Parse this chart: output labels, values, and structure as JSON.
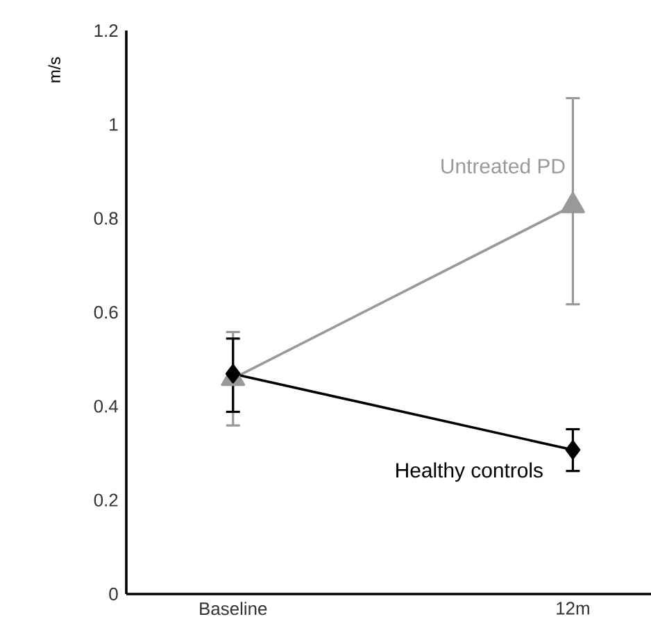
{
  "chart_data": {
    "type": "line",
    "ylabel": "m/s",
    "categories": [
      "Baseline",
      "12m"
    ],
    "ylim": [
      0,
      1.2
    ],
    "yticks": [
      0,
      0.2,
      0.4,
      0.6,
      0.8,
      1,
      1.2
    ],
    "grid": false,
    "series": [
      {
        "name": "Untreated PD",
        "color": "#999999",
        "marker": "triangle",
        "values": [
          0.459,
          0.827
        ],
        "errors": [
          [
            0.359,
            0.558
          ],
          [
            0.617,
            1.056
          ]
        ]
      },
      {
        "name": "Healthy controls",
        "color": "#000000",
        "marker": "diamond",
        "values": [
          0.469,
          0.307
        ],
        "errors": [
          [
            0.388,
            0.544
          ],
          [
            0.262,
            0.351
          ]
        ]
      }
    ]
  }
}
